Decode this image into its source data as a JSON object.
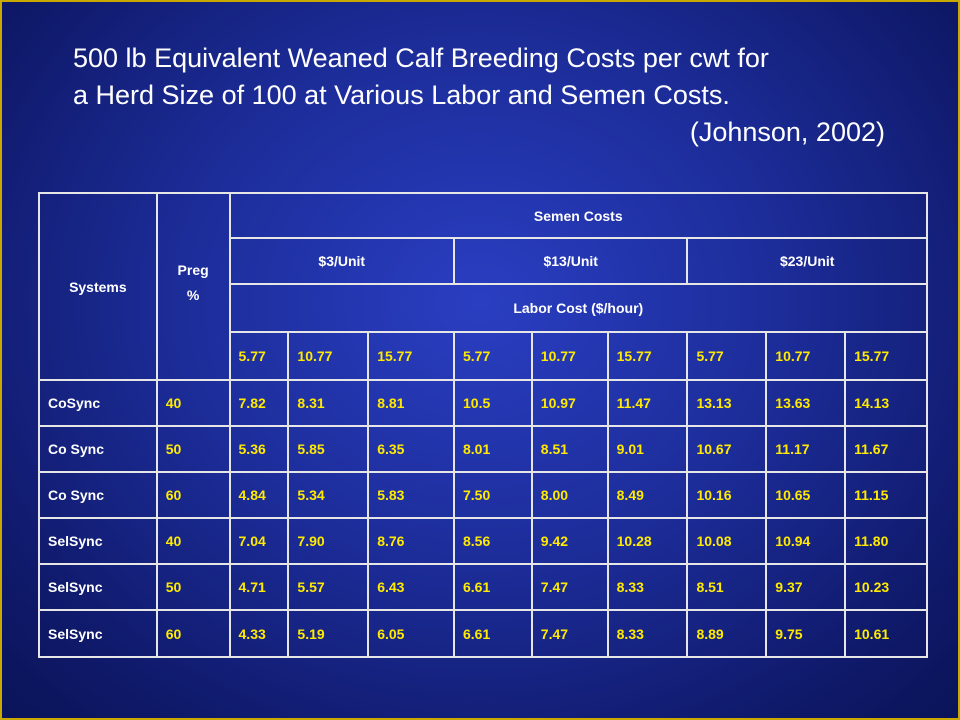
{
  "slide": {
    "title_line1": "500 lb Equivalent Weaned Calf Breeding Costs per cwt for",
    "title_line2": "a Herd Size of 100 at Various Labor and Semen Costs.",
    "citation": "(Johnson, 2002)"
  },
  "table": {
    "col_systems": "Systems",
    "col_preg": "Preg",
    "col_preg_unit": "%",
    "semen_costs_header": "Semen Costs",
    "semen_units": [
      "$3/Unit",
      "$13/Unit",
      "$23/Unit"
    ],
    "labor_header": "Labor Cost ($/hour)",
    "labor_values": [
      "5.77",
      "10.77",
      "15.77",
      "5.77",
      "10.77",
      "15.77",
      "5.77",
      "10.77",
      "15.77"
    ],
    "rows": [
      {
        "system": "CoSync",
        "preg": "40",
        "values": [
          "7.82",
          "8.31",
          "8.81",
          "10.5",
          "10.97",
          "11.47",
          "13.13",
          "13.63",
          "14.13"
        ]
      },
      {
        "system": "Co Sync",
        "preg": "50",
        "values": [
          "5.36",
          "5.85",
          "6.35",
          "8.01",
          "8.51",
          "9.01",
          "10.67",
          "11.17",
          "11.67"
        ]
      },
      {
        "system": "Co Sync",
        "preg": "60",
        "values": [
          "4.84",
          "5.34",
          "5.83",
          "7.50",
          "8.00",
          "8.49",
          "10.16",
          "10.65",
          "11.15"
        ]
      },
      {
        "system": "SelSync",
        "preg": "40",
        "values": [
          "7.04",
          "7.90",
          "8.76",
          "8.56",
          "9.42",
          "10.28",
          "10.08",
          "10.94",
          "11.80"
        ]
      },
      {
        "system": "SelSync",
        "preg": "50",
        "values": [
          "4.71",
          "5.57",
          "6.43",
          "6.61",
          "7.47",
          "8.33",
          "8.51",
          "9.37",
          "10.23"
        ]
      },
      {
        "system": "SelSync",
        "preg": "60",
        "values": [
          "4.33",
          "5.19",
          "6.05",
          "6.61",
          "7.47",
          "8.33",
          "8.89",
          "9.75",
          "10.61"
        ]
      }
    ]
  },
  "colors": {
    "background": "#1c2c98",
    "frame_border": "#c9a800",
    "header_text": "#ffffff",
    "value_text": "#ffea00",
    "grid_lines": "#e6e6e6"
  }
}
